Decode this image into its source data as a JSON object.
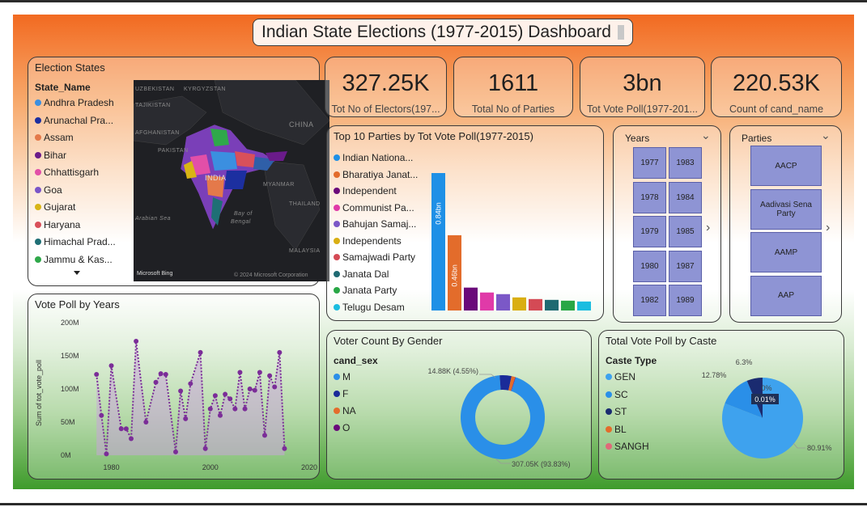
{
  "dashboard": {
    "title": "Indian State Elections (1977-2015) Dashboard"
  },
  "kpis": [
    {
      "value": "327.25K",
      "label": "Tot No of Electors(197..."
    },
    {
      "value": "1611",
      "label": "Total No of Parties"
    },
    {
      "value": "3bn",
      "label": "Tot Vote Poll(1977-201..."
    },
    {
      "value": "220.53K",
      "label": "Count of cand_name"
    }
  ],
  "election_states": {
    "title": "Election States",
    "field": "State_Name",
    "items": [
      {
        "label": "Andhra Pradesh",
        "color": "#3b8fe0"
      },
      {
        "label": "Arunachal Pra...",
        "color": "#1c2fa0"
      },
      {
        "label": "Assam",
        "color": "#e4794a"
      },
      {
        "label": "Bihar",
        "color": "#6a1b8a"
      },
      {
        "label": "Chhattisgarh",
        "color": "#e24fa8"
      },
      {
        "label": "Goa",
        "color": "#7a55c8"
      },
      {
        "label": "Gujarat",
        "color": "#d8b415"
      },
      {
        "label": "Haryana",
        "color": "#d9505a"
      },
      {
        "label": "Himachal Prad...",
        "color": "#1f6f75"
      },
      {
        "label": "Jammu & Kas...",
        "color": "#2fa84a"
      }
    ],
    "map_labels": {
      "india": "INDIA",
      "china": "CHINA",
      "pakistan": "PAKISTAN",
      "afghanistan": "AFGHANISTAN",
      "myanmar": "MYANMAR",
      "thailand": "THAILAND",
      "malaysia": "MALAYSIA",
      "arabian_sea": "Arabian Sea",
      "bay_of_bengal_1": "Bay of",
      "bay_of_bengal_2": "Bengal",
      "uzbekistan": "UZBEKISTAN",
      "kyrgyzstan": "KYRGYZSTAN",
      "tajikistan": "TAJIKISTAN",
      "brand": "Microsoft Bing",
      "copyright": "© 2024 Microsoft Corporation"
    }
  },
  "top_parties": {
    "title": "Top 10 Parties by Tot Vote Poll(1977-2015)",
    "legend": [
      {
        "label": "Indian Nationa...",
        "color": "#1e90e6"
      },
      {
        "label": "Bharatiya Janat...",
        "color": "#e36c2b"
      },
      {
        "label": "Independent",
        "color": "#6a0a7a"
      },
      {
        "label": "Communist Pa...",
        "color": "#e03aa8"
      },
      {
        "label": "Bahujan Samaj...",
        "color": "#7b58c7"
      },
      {
        "label": "Independents",
        "color": "#d9ae12"
      },
      {
        "label": "Samajwadi Party",
        "color": "#d44a55"
      },
      {
        "label": "Janata Dal",
        "color": "#1f6a72"
      },
      {
        "label": "Janata Party",
        "color": "#28a745"
      },
      {
        "label": "Telugu Desam",
        "color": "#1bbde0"
      }
    ],
    "data_labels": [
      "0.84bn",
      "0.46bn"
    ]
  },
  "years": {
    "title": "Years",
    "items": [
      "1977",
      "1983",
      "1978",
      "1984",
      "1979",
      "1985",
      "1980",
      "1987",
      "1982",
      "1989"
    ]
  },
  "parties": {
    "title": "Parties",
    "items": [
      "AACP",
      "Aadivasi Sena Party",
      "AAMP",
      "AAP"
    ]
  },
  "vote_poll_years": {
    "title": "Vote Poll by Years",
    "ylabel": "Sum of tot_vote_poll",
    "yticks": [
      "200M",
      "150M",
      "100M",
      "50M",
      "0M"
    ],
    "xticks": [
      "1980",
      "2000",
      "2020"
    ]
  },
  "gender": {
    "title": "Voter Count By Gender",
    "field": "cand_sex",
    "legend": [
      {
        "label": "M",
        "color": "#2a8fe8"
      },
      {
        "label": "F",
        "color": "#1a2b99"
      },
      {
        "label": "NA",
        "color": "#e36c2b"
      },
      {
        "label": "O",
        "color": "#6a0a7a"
      }
    ],
    "label_small": "14.88K (4.55%)",
    "label_big": "307.05K (93.83%)"
  },
  "caste": {
    "title": "Total Vote Poll by Caste",
    "field": "Caste Type",
    "legend": [
      {
        "label": "GEN",
        "color": "#3ea2ee"
      },
      {
        "label": "SC",
        "color": "#2a8fe8"
      },
      {
        "label": "ST",
        "color": "#1a2b70"
      },
      {
        "label": "BL",
        "color": "#e36c2b"
      },
      {
        "label": "SANGH",
        "color": "#e06a7a"
      }
    ],
    "labels": [
      "6.3%",
      "12.78%",
      "0%",
      "0.01%",
      "80.91%"
    ]
  },
  "chart_data": [
    {
      "type": "bar",
      "title": "Top 10 Parties by Tot Vote Poll(1977-2015)",
      "categories": [
        "Indian Nationa...",
        "Bharatiya Janat...",
        "Independent",
        "Communist Pa...",
        "Bahujan Samaj...",
        "Independents",
        "Samajwadi Party",
        "Janata Dal",
        "Janata Party",
        "Telugu Desam"
      ],
      "values": [
        0.84,
        0.46,
        0.14,
        0.11,
        0.1,
        0.08,
        0.07,
        0.065,
        0.06,
        0.055
      ],
      "unit": "bn",
      "colors": [
        "#1e90e6",
        "#e36c2b",
        "#6a0a7a",
        "#e03aa8",
        "#7b58c7",
        "#d9ae12",
        "#d44a55",
        "#1f6a72",
        "#28a745",
        "#1bbde0"
      ],
      "ylim": [
        0,
        0.84
      ]
    },
    {
      "type": "area",
      "title": "Vote Poll by Years",
      "xlabel": "",
      "ylabel": "Sum of tot_vote_poll",
      "x": [
        1977,
        1978,
        1979,
        1980,
        1982,
        1983,
        1984,
        1985,
        1987,
        1989,
        1990,
        1991,
        1993,
        1994,
        1995,
        1996,
        1998,
        1999,
        2000,
        2001,
        2002,
        2003,
        2004,
        2005,
        2006,
        2007,
        2008,
        2009,
        2010,
        2011,
        2012,
        2013,
        2014,
        2015
      ],
      "values": [
        122,
        60,
        2,
        135,
        40,
        40,
        25,
        172,
        50,
        110,
        123,
        122,
        5,
        97,
        55,
        108,
        155,
        10,
        70,
        90,
        60,
        92,
        85,
        70,
        125,
        70,
        100,
        98,
        125,
        30,
        120,
        103,
        155,
        10
      ],
      "unit": "M",
      "ylim": [
        0,
        200
      ],
      "xlim": [
        1975,
        2020
      ],
      "color": "#7b2d98"
    },
    {
      "type": "pie",
      "title": "Voter Count By Gender",
      "labels": [
        "M",
        "F",
        "NA",
        "O"
      ],
      "values": [
        307.05,
        14.88,
        4.7,
        0.6
      ],
      "unit": "K",
      "colors": [
        "#2a8fe8",
        "#1a2b99",
        "#e36c2b",
        "#6a0a7a"
      ],
      "donut": true
    },
    {
      "type": "pie",
      "title": "Total Vote Poll by Caste",
      "labels": [
        "GEN",
        "SC",
        "ST",
        "BL",
        "SANGH"
      ],
      "values": [
        80.91,
        12.78,
        6.3,
        0.01,
        0.0
      ],
      "unit": "%",
      "colors": [
        "#3ea2ee",
        "#2a8fe8",
        "#1a2b70",
        "#e36c2b",
        "#e06a7a"
      ]
    }
  ]
}
